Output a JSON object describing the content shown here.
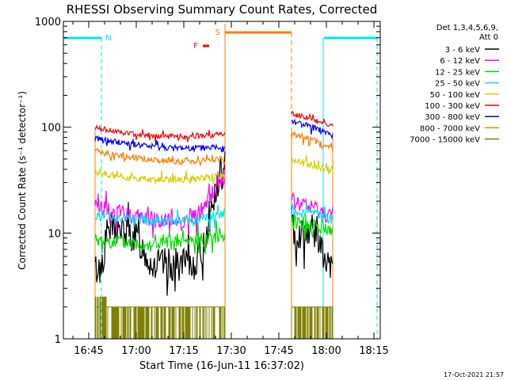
{
  "chart_data": {
    "type": "line",
    "title": "RHESSI Observing Summary Count Rates, Corrected",
    "xlabel": "Start Time (16-Jun-11 16:37:02)",
    "ylabel": "Corrected Count Rate (s⁻¹ detector⁻¹)",
    "y_scale": "log",
    "ylim": [
      1,
      1000
    ],
    "x_unit": "minutes since 16:37:02",
    "xlim": [
      0,
      100
    ],
    "x_ticks": [
      {
        "value": 8,
        "label": "16:45"
      },
      {
        "value": 23,
        "label": "17:00"
      },
      {
        "value": 38,
        "label": "17:15"
      },
      {
        "value": 53,
        "label": "17:30"
      },
      {
        "value": 68,
        "label": "17:45"
      },
      {
        "value": 83,
        "label": "18:00"
      },
      {
        "value": 98,
        "label": "18:15"
      }
    ],
    "y_ticks": [
      {
        "value": 1,
        "label": "1"
      },
      {
        "value": 10,
        "label": "10"
      },
      {
        "value": 100,
        "label": "100"
      },
      {
        "value": 1000,
        "label": "1000"
      }
    ],
    "legend": {
      "placement": "right",
      "header": [
        "Det 1,3,4,5,6,9,",
        "Att 0"
      ],
      "entries": [
        {
          "name": "3 - 6 keV",
          "color": "#000000"
        },
        {
          "name": "6 - 12 keV",
          "color": "#ff00ff"
        },
        {
          "name": "12 - 25 keV",
          "color": "#00dd00"
        },
        {
          "name": "25 - 50 keV",
          "color": "#00e5e5"
        },
        {
          "name": "50 - 100 keV",
          "color": "#d8cf00"
        },
        {
          "name": "100 - 300 keV",
          "color": "#ff0000"
        },
        {
          "name": "300 - 800 keV",
          "color": "#0000ff"
        },
        {
          "name": "800 - 7000 keV",
          "color": "#ff7f00"
        },
        {
          "name": "7000 - 15000 keV",
          "color": "#808000"
        }
      ]
    },
    "intervals": [
      {
        "label": "N",
        "color": "#00e5e5",
        "start": 0,
        "end": 12,
        "data_end": 10
      },
      {
        "label": "N",
        "color": "#00e5e5",
        "start": 82,
        "end": 99,
        "data_start": 82
      },
      {
        "label": "S",
        "color": "#ff7f00",
        "start": 51,
        "end": 72
      },
      {
        "label": "F",
        "color": "#ff0000",
        "start": 44,
        "end": 45
      }
    ],
    "segments": [
      {
        "start": 10,
        "end": 51
      },
      {
        "start": 72,
        "end": 85
      }
    ],
    "series": [
      {
        "name": "3 - 6 keV",
        "color": "#000000",
        "values": [
          [
            10,
            4.5
          ],
          [
            12,
            4.6
          ],
          [
            14,
            11
          ],
          [
            18,
            10.5
          ],
          [
            23,
            9.0
          ],
          [
            28,
            5.0
          ],
          [
            33,
            5.0
          ],
          [
            38,
            5.0
          ],
          [
            41,
            5.0
          ],
          [
            44,
            7.0
          ],
          [
            46,
            13
          ],
          [
            48,
            23
          ],
          [
            50,
            34
          ],
          [
            51,
            34
          ],
          [
            72,
            11
          ],
          [
            74,
            9.5
          ],
          [
            76,
            10.5
          ],
          [
            78,
            11
          ],
          [
            80,
            10
          ],
          [
            81,
            8.5
          ],
          [
            82,
            5.5
          ],
          [
            84,
            4.5
          ],
          [
            85,
            4.5
          ]
        ]
      },
      {
        "name": "6 - 12 keV",
        "color": "#ff00ff",
        "values": [
          [
            10,
            19
          ],
          [
            14,
            16
          ],
          [
            20,
            15
          ],
          [
            26,
            14
          ],
          [
            32,
            13
          ],
          [
            38,
            13
          ],
          [
            42,
            14.5
          ],
          [
            45,
            19
          ],
          [
            47,
            24
          ],
          [
            49,
            30
          ],
          [
            51,
            35
          ],
          [
            72,
            20
          ],
          [
            76,
            18
          ],
          [
            80,
            17
          ],
          [
            83,
            15
          ],
          [
            85,
            15
          ]
        ]
      },
      {
        "name": "12 - 25 keV",
        "color": "#00dd00",
        "values": [
          [
            10,
            8.5
          ],
          [
            14,
            8.5
          ],
          [
            20,
            8.0
          ],
          [
            28,
            7.8
          ],
          [
            36,
            8.0
          ],
          [
            42,
            8.5
          ],
          [
            46,
            9.0
          ],
          [
            51,
            10
          ],
          [
            72,
            13
          ],
          [
            76,
            12.5
          ],
          [
            80,
            12
          ],
          [
            83,
            11
          ],
          [
            85,
            10
          ]
        ]
      },
      {
        "name": "25 - 50 keV",
        "color": "#00e5e5",
        "values": [
          [
            10,
            15
          ],
          [
            16,
            14
          ],
          [
            22,
            13.5
          ],
          [
            30,
            13
          ],
          [
            38,
            13
          ],
          [
            44,
            13.5
          ],
          [
            51,
            15.5
          ],
          [
            72,
            16
          ],
          [
            76,
            15.5
          ],
          [
            80,
            15
          ],
          [
            83,
            14
          ],
          [
            85,
            13.5
          ]
        ]
      },
      {
        "name": "50 - 100 keV",
        "color": "#d8cf00",
        "values": [
          [
            10,
            38
          ],
          [
            16,
            35
          ],
          [
            22,
            33
          ],
          [
            28,
            32
          ],
          [
            34,
            32
          ],
          [
            40,
            32
          ],
          [
            46,
            33
          ],
          [
            51,
            35
          ],
          [
            72,
            50
          ],
          [
            76,
            46
          ],
          [
            80,
            43
          ],
          [
            83,
            40
          ],
          [
            85,
            37
          ]
        ]
      },
      {
        "name": "100 - 300 keV",
        "color": "#ff0000",
        "values": [
          [
            10,
            100
          ],
          [
            14,
            94
          ],
          [
            20,
            88
          ],
          [
            26,
            84
          ],
          [
            32,
            82
          ],
          [
            38,
            82
          ],
          [
            44,
            83
          ],
          [
            51,
            86
          ],
          [
            72,
            135
          ],
          [
            76,
            125
          ],
          [
            80,
            115
          ],
          [
            83,
            108
          ],
          [
            85,
            102
          ]
        ]
      },
      {
        "name": "300 - 800 keV",
        "color": "#0000ff",
        "values": [
          [
            10,
            77
          ],
          [
            14,
            74
          ],
          [
            20,
            70
          ],
          [
            26,
            66
          ],
          [
            32,
            64
          ],
          [
            38,
            63
          ],
          [
            44,
            64
          ],
          [
            51,
            65
          ],
          [
            72,
            115
          ],
          [
            76,
            105
          ],
          [
            80,
            97
          ],
          [
            83,
            88
          ],
          [
            85,
            78
          ]
        ]
      },
      {
        "name": "800 - 7000 keV",
        "color": "#ff7f00",
        "values": [
          [
            10,
            60
          ],
          [
            14,
            56
          ],
          [
            20,
            53
          ],
          [
            26,
            50
          ],
          [
            32,
            48
          ],
          [
            38,
            47
          ],
          [
            44,
            48
          ],
          [
            51,
            50
          ],
          [
            72,
            88
          ],
          [
            76,
            80
          ],
          [
            80,
            73
          ],
          [
            83,
            67
          ],
          [
            85,
            60
          ]
        ]
      },
      {
        "name": "7000 - 15000 keV",
        "color": "#808000",
        "values": [
          [
            10,
            2.5
          ],
          [
            12,
            2.5
          ],
          [
            14,
            2.0
          ],
          [
            51,
            2.0
          ],
          [
            72,
            2.0
          ],
          [
            85,
            2.0
          ]
        ]
      }
    ]
  },
  "timestamp": "17-Oct-2021 21:57",
  "colors": {
    "axis": "#000000",
    "background": "#ffffff"
  }
}
